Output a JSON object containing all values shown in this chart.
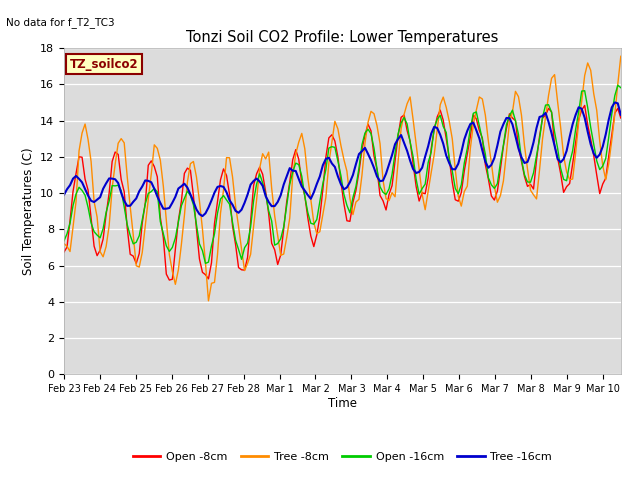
{
  "title": "Tonzi Soil CO2 Profile: Lower Temperatures",
  "subtitle": "No data for f_T2_TC3",
  "xlabel": "Time",
  "ylabel": "Soil Temperatures (C)",
  "ylim": [
    0,
    18
  ],
  "yticks": [
    0,
    2,
    4,
    6,
    8,
    10,
    12,
    14,
    16,
    18
  ],
  "background_color": "#ffffff",
  "plot_bg_color": "#dcdcdc",
  "legend_label": "TZ_soilco2",
  "legend_box_color": "#ffffc0",
  "legend_box_edge": "#8b0000",
  "series_colors": {
    "open8": "#ff0000",
    "tree8": "#ff8c00",
    "open16": "#00cc00",
    "tree16": "#0000cd"
  },
  "series_labels": [
    "Open -8cm",
    "Tree -8cm",
    "Open -16cm",
    "Tree -16cm"
  ],
  "x_tick_labels": [
    "Feb 23",
    "Feb 24",
    "Feb 25",
    "Feb 26",
    "Feb 27",
    "Feb 28",
    "Mar 1",
    "Mar 2",
    "Mar 3",
    "Mar 4",
    "Mar 5",
    "Mar 6",
    "Mar 7",
    "Mar 8",
    "Mar 9",
    "Mar 10"
  ],
  "figsize": [
    6.4,
    4.8
  ],
  "dpi": 100
}
